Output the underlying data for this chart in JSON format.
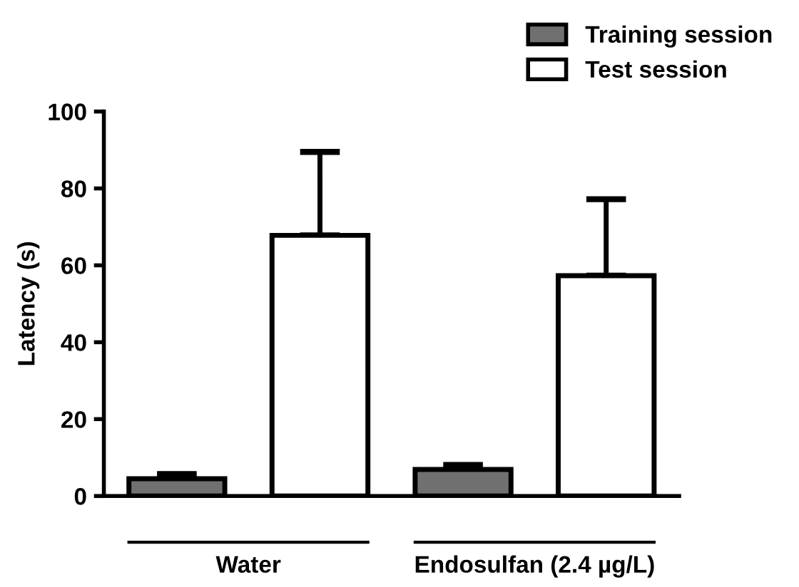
{
  "chart_data": {
    "type": "bar",
    "categories": [
      "Water",
      "Endosulfan (2.4 µg/L)"
    ],
    "ylabel": "Latency (s)",
    "series": [
      {
        "name": "Training session",
        "color": "#707070",
        "values": [
          4.5,
          6.9
        ],
        "errors": [
          [
            4.5,
            5.7
          ],
          [
            6.9,
            8.1
          ]
        ]
      },
      {
        "name": "Test session",
        "color": "#ffffff",
        "values": [
          67.8,
          57.3
        ],
        "errors": [
          [
            67.8,
            89.5
          ],
          [
            57.3,
            77.2
          ]
        ]
      }
    ],
    "ylim": [
      0,
      100
    ],
    "yticks": [
      0,
      20,
      40,
      60,
      80,
      100
    ],
    "grid": false,
    "legend": "top right"
  }
}
